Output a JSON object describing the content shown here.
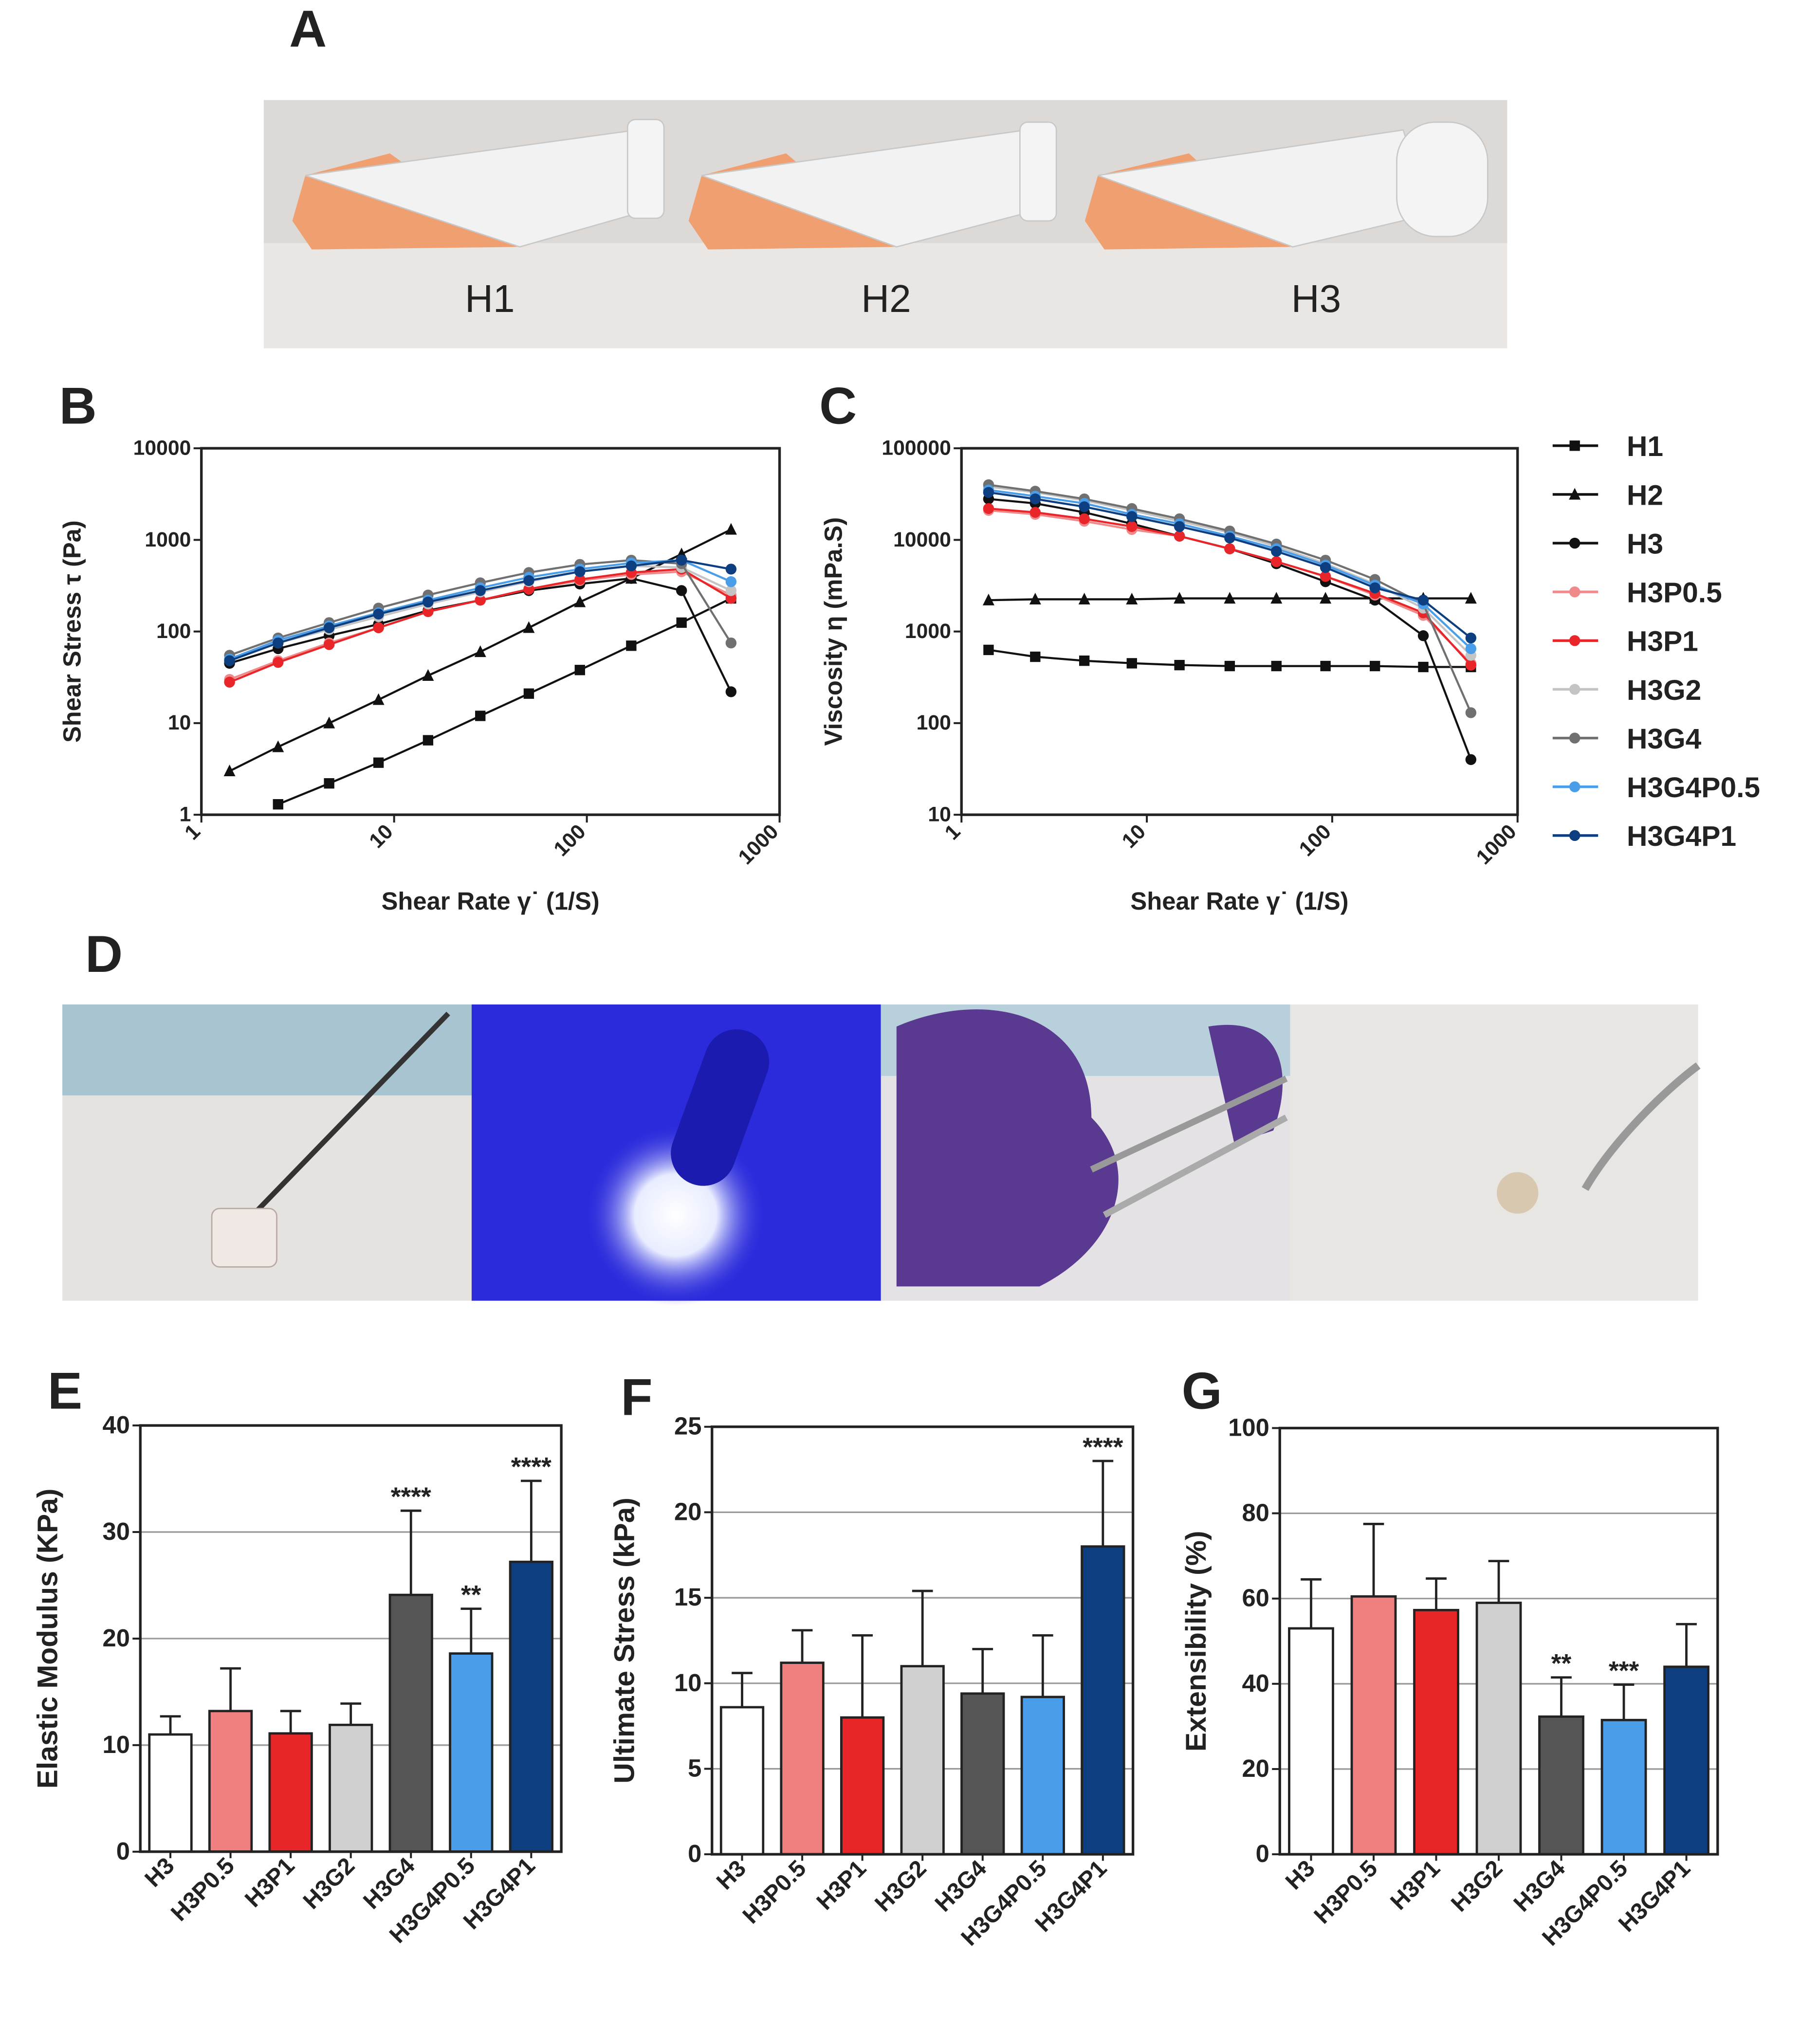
{
  "panels": {
    "A": {
      "letter": "A",
      "labels": [
        "H1",
        "H2",
        "H3"
      ]
    },
    "D": {
      "letter": "D"
    }
  },
  "chart_data": [
    {
      "panel": "B",
      "type": "line",
      "xlabel": "Shear Rate γ˙ (1/S)",
      "ylabel": "Shear Stress τ (Pa)",
      "log_x": true,
      "log_y": true,
      "x": [
        1.4,
        2.5,
        4.6,
        8.3,
        15,
        28,
        50,
        92,
        170,
        310,
        560
      ],
      "xlim": [
        1,
        1000
      ],
      "xticks": [
        1,
        10,
        100,
        1000
      ],
      "ylim": [
        1,
        10000
      ],
      "yticks": [
        1,
        10,
        100,
        1000,
        10000
      ],
      "series": [
        {
          "color": "#111111",
          "marker": "square",
          "values": [
            null,
            1.3,
            2.2,
            3.7,
            6.5,
            12,
            21,
            38,
            70,
            125,
            230
          ]
        },
        {
          "color": "#111111",
          "marker": "triangle",
          "values": [
            3,
            5.5,
            10,
            18,
            33,
            60,
            110,
            210,
            380,
            700,
            1300
          ]
        },
        {
          "color": "#111111",
          "marker": "circle",
          "values": [
            45,
            65,
            90,
            120,
            170,
            220,
            280,
            330,
            380,
            280,
            22
          ]
        },
        {
          "color": "#f08a8a",
          "marker": "circle",
          "values": [
            30,
            48,
            75,
            110,
            165,
            220,
            290,
            360,
            420,
            450,
            250
          ]
        },
        {
          "color": "#e8262a",
          "marker": "circle",
          "values": [
            28,
            46,
            72,
            110,
            165,
            220,
            290,
            370,
            440,
            480,
            230
          ]
        },
        {
          "color": "#c4c4c4",
          "marker": "circle",
          "values": [
            50,
            75,
            105,
            145,
            200,
            270,
            350,
            450,
            520,
            500,
            280
          ]
        },
        {
          "color": "#707070",
          "marker": "circle",
          "values": [
            55,
            85,
            125,
            180,
            250,
            340,
            440,
            540,
            600,
            550,
            75
          ]
        },
        {
          "color": "#4a9de8",
          "marker": "circle",
          "values": [
            50,
            80,
            115,
            160,
            220,
            300,
            390,
            480,
            560,
            600,
            350
          ]
        },
        {
          "color": "#0d3f80",
          "marker": "circle",
          "values": [
            48,
            75,
            110,
            155,
            210,
            280,
            360,
            450,
            520,
            600,
            480
          ]
        }
      ]
    },
    {
      "panel": "C",
      "type": "line",
      "xlabel": "Shear Rate γ˙ (1/S)",
      "ylabel": "Viscosity η (mPa.S)",
      "log_x": true,
      "log_y": true,
      "legend": "right",
      "x": [
        1.4,
        2.5,
        4.6,
        8.3,
        15,
        28,
        50,
        92,
        170,
        310,
        560
      ],
      "xlim": [
        1,
        1000
      ],
      "xticks": [
        1,
        10,
        100,
        1000
      ],
      "ylim": [
        10,
        100000
      ],
      "yticks": [
        10,
        100,
        1000,
        10000,
        100000
      ],
      "series": [
        {
          "name": "H1",
          "color": "#111111",
          "marker": "square",
          "values": [
            630,
            530,
            480,
            450,
            430,
            420,
            420,
            420,
            420,
            410,
            410
          ]
        },
        {
          "name": "H2",
          "color": "#111111",
          "marker": "triangle",
          "values": [
            2200,
            2250,
            2250,
            2250,
            2300,
            2300,
            2300,
            2300,
            2300,
            2300,
            2300
          ]
        },
        {
          "name": "H3",
          "color": "#111111",
          "marker": "circle",
          "values": [
            28000,
            25000,
            20000,
            15000,
            11000,
            8000,
            5500,
            3500,
            2200,
            900,
            40
          ]
        },
        {
          "name": "H3P0.5",
          "color": "#f08a8a",
          "marker": "circle",
          "values": [
            21000,
            19000,
            16000,
            13000,
            11000,
            8000,
            5800,
            4000,
            2500,
            1500,
            450
          ]
        },
        {
          "name": "H3P1",
          "color": "#e8262a",
          "marker": "circle",
          "values": [
            22000,
            20000,
            17000,
            14000,
            11000,
            8000,
            5800,
            4000,
            2600,
            1600,
            430
          ]
        },
        {
          "name": "H3G2",
          "color": "#c4c4c4",
          "marker": "circle",
          "values": [
            38000,
            33000,
            27000,
            21000,
            16000,
            12000,
            8500,
            5500,
            3300,
            1800,
            550
          ]
        },
        {
          "name": "H3G4",
          "color": "#707070",
          "marker": "circle",
          "values": [
            40000,
            34000,
            28000,
            22000,
            17000,
            12500,
            9000,
            6000,
            3700,
            2000,
            130
          ]
        },
        {
          "name": "H3G4P0.5",
          "color": "#4a9de8",
          "marker": "circle",
          "values": [
            35000,
            30000,
            25000,
            19000,
            15000,
            11000,
            8000,
            5300,
            3200,
            2000,
            650
          ]
        },
        {
          "name": "H3G4P1",
          "color": "#0d3f80",
          "marker": "circle",
          "values": [
            33000,
            28000,
            23000,
            18000,
            14000,
            10500,
            7500,
            5000,
            3000,
            2200,
            850
          ]
        }
      ]
    },
    {
      "panel": "E",
      "type": "bar",
      "ylabel": "Elastic Modulus (KPa)",
      "grid": true,
      "categories": [
        "H3",
        "H3P0.5",
        "H3P1",
        "H3G2",
        "H3G4",
        "H3G4P0.5",
        "H3G4P1"
      ],
      "values": [
        11,
        13.2,
        11.1,
        11.9,
        24.1,
        18.6,
        27.2
      ],
      "errors": [
        1.7,
        4,
        2.1,
        2,
        7.9,
        4.2,
        7.6
      ],
      "annotations": [
        null,
        null,
        null,
        null,
        "****",
        "**",
        "****"
      ],
      "colors": [
        "#ffffff",
        "#f08080",
        "#e8262a",
        "#d0d0d0",
        "#555555",
        "#4a9de8",
        "#0d3f80"
      ],
      "ylim": [
        0,
        40
      ],
      "yticks": [
        0,
        10,
        20,
        30,
        40
      ]
    },
    {
      "panel": "F",
      "type": "bar",
      "ylabel": "Ultimate Stress (kPa)",
      "grid": true,
      "categories": [
        "H3",
        "H3P0.5",
        "H3P1",
        "H3G2",
        "H3G4",
        "H3G4P0.5",
        "H3G4P1"
      ],
      "values": [
        8.6,
        11.2,
        8,
        11,
        9.4,
        9.2,
        18
      ],
      "errors": [
        2,
        1.9,
        4.8,
        4.4,
        2.6,
        3.6,
        5
      ],
      "annotations": [
        null,
        null,
        null,
        null,
        null,
        null,
        "****"
      ],
      "colors": [
        "#ffffff",
        "#f08080",
        "#e8262a",
        "#d0d0d0",
        "#555555",
        "#4a9de8",
        "#0d3f80"
      ],
      "ylim": [
        0,
        25
      ],
      "yticks": [
        0,
        5,
        10,
        15,
        20,
        25
      ]
    },
    {
      "panel": "G",
      "type": "bar",
      "ylabel": "Extensibility (%)",
      "grid": true,
      "categories": [
        "H3",
        "H3P0.5",
        "H3P1",
        "H3G2",
        "H3G4",
        "H3G4P0.5",
        "H3G4P1"
      ],
      "values": [
        53,
        60.5,
        57.3,
        59,
        32.3,
        31.5,
        44
      ],
      "errors": [
        11.5,
        17,
        7.4,
        9.8,
        9.2,
        8.3,
        10
      ],
      "annotations": [
        null,
        null,
        null,
        null,
        "**",
        "***",
        null
      ],
      "colors": [
        "#ffffff",
        "#f08080",
        "#e8262a",
        "#d0d0d0",
        "#555555",
        "#4a9de8",
        "#0d3f80"
      ],
      "ylim": [
        0,
        100
      ],
      "yticks": [
        0,
        20,
        40,
        60,
        80,
        100
      ]
    }
  ]
}
